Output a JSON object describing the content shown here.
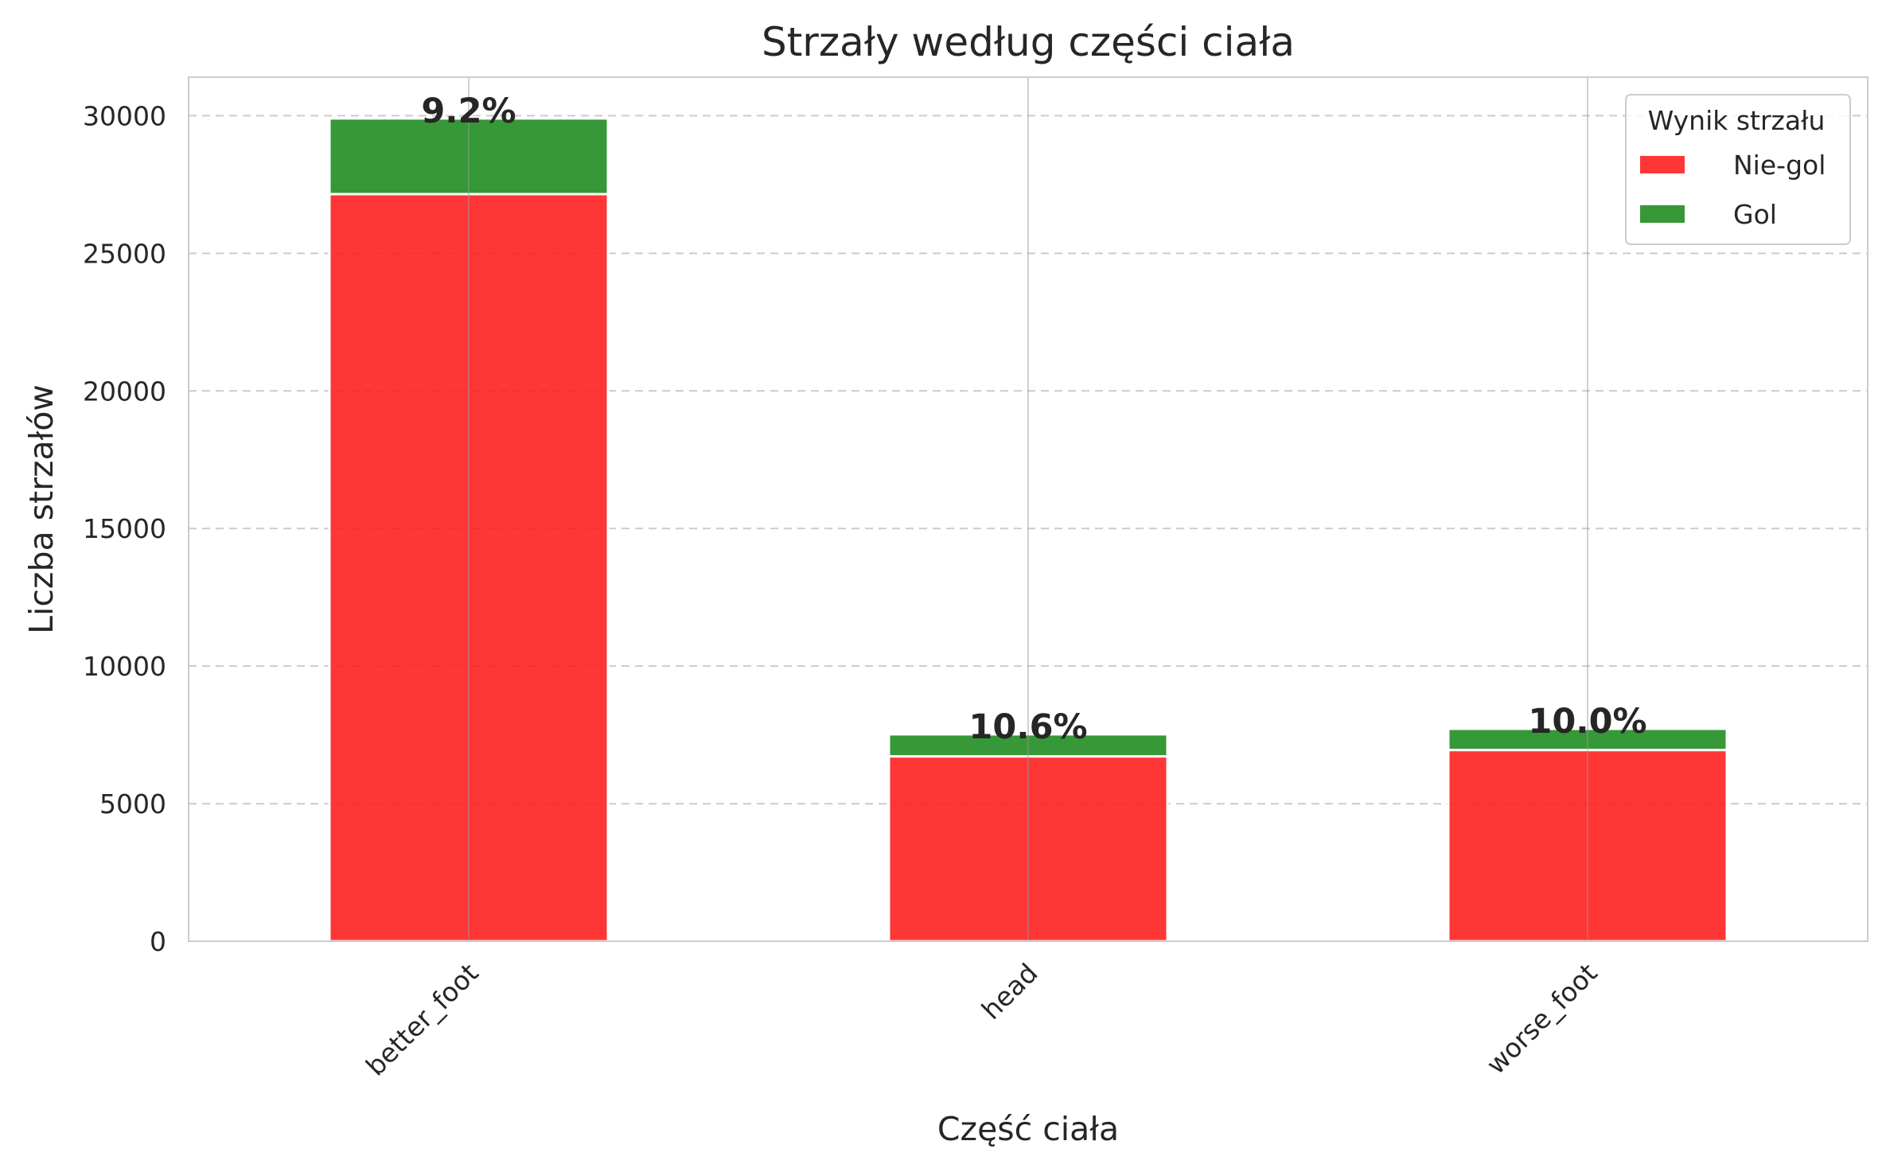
{
  "chart_data": {
    "type": "bar",
    "stacked": true,
    "title": "Strzały według części ciała",
    "xlabel": "Część ciała",
    "ylabel": "Liczba strzałów",
    "categories": [
      "better_foot",
      "head",
      "worse_foot"
    ],
    "series": [
      {
        "name": "Nie-gol",
        "color": "#ff1a1a",
        "values": [
          27150,
          6720,
          6950
        ]
      },
      {
        "name": "Gol",
        "color": "#1a8a1a",
        "values": [
          2750,
          800,
          770
        ]
      }
    ],
    "data_labels": [
      "9.2%",
      "10.6%",
      "10.0%"
    ],
    "ylim": [
      0,
      31400
    ],
    "yticks": [
      0,
      5000,
      10000,
      15000,
      20000,
      25000,
      30000
    ],
    "grid": true,
    "legend": {
      "title": "Wynik strzału",
      "position": "top-right"
    }
  }
}
